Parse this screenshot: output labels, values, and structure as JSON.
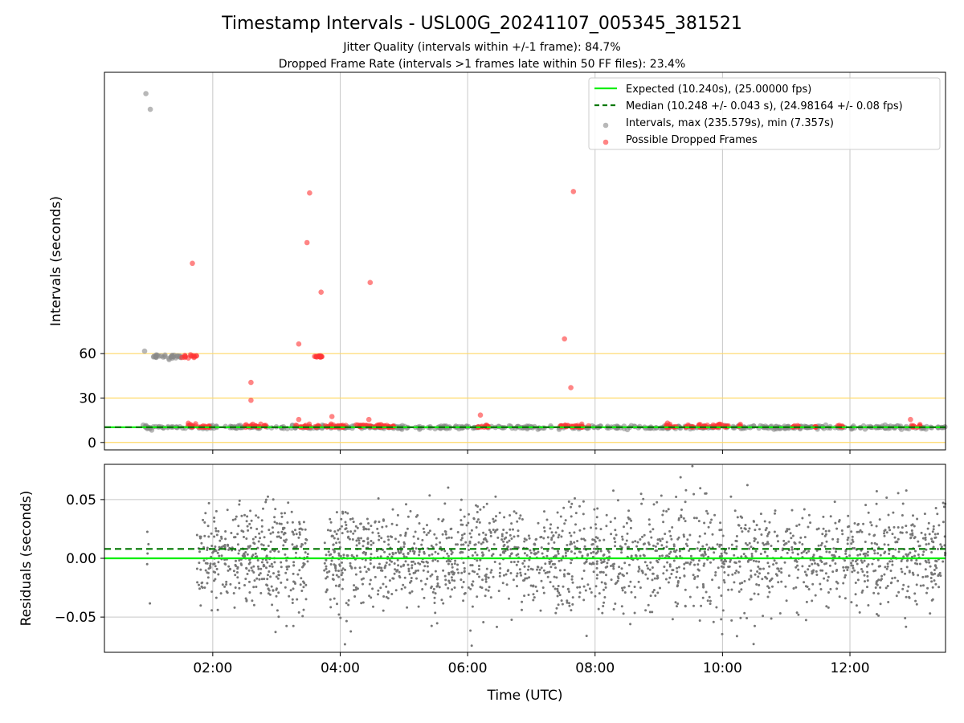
{
  "figure": {
    "title": "Timestamp Intervals - USL00G_20241107_005345_381521",
    "subtitle_line1": "Jitter Quality (intervals within +/-1 frame): 84.7%",
    "subtitle_line2": "Dropped Frame Rate (intervals >1 frames late within 50 FF files): 23.4%"
  },
  "chart_data": [
    {
      "type": "scatter",
      "panel": "intervals",
      "ylabel": "Intervals (seconds)",
      "xlabel": "",
      "x_range_hours": [
        0.3,
        13.5
      ],
      "ylim": [
        -5,
        250
      ],
      "y_ticks": [
        0,
        30,
        60
      ],
      "x_ticks": [
        "02:00",
        "04:00",
        "06:00",
        "08:00",
        "10:00",
        "12:00"
      ],
      "x_tick_hours": [
        2,
        4,
        6,
        8,
        10,
        12
      ],
      "grid": "x only",
      "reference_lines": [
        {
          "value": 0,
          "color": "#ffd966"
        },
        {
          "value": 30,
          "color": "#ffd966"
        },
        {
          "value": 60,
          "color": "#ffd966"
        }
      ],
      "legend_position": "upper right",
      "series": [
        {
          "name": "Expected (10.240s), (25.00000 fps)",
          "kind": "line",
          "color": "#00ee00",
          "style": "solid",
          "value": 10.24
        },
        {
          "name": "Median (10.248 +/- 0.043 s), (24.98164 +/- 0.08 fps)",
          "kind": "line",
          "color": "#007700",
          "style": "dashed",
          "value": 10.248
        },
        {
          "name": "Intervals, max (235.579s), min (7.357s)",
          "kind": "points",
          "color": "#888888",
          "outliers": [
            {
              "t": 0.95,
              "y": 235.6
            },
            {
              "t": 1.02,
              "y": 225.0
            },
            {
              "t": 0.93,
              "y": 61.7
            }
          ],
          "cluster": {
            "t_start": 0.9,
            "t_end": 13.5,
            "center": 10.24,
            "spread": 1.1
          },
          "plateau": {
            "t_start": 1.05,
            "t_end": 1.5,
            "center": 58.0,
            "spread": 1.2
          }
        },
        {
          "name": "Possible Dropped Frames",
          "kind": "points",
          "color": "#ff3333",
          "outliers": [
            {
              "t": 1.68,
              "y": 121.0
            },
            {
              "t": 2.6,
              "y": 40.5
            },
            {
              "t": 2.6,
              "y": 28.5
            },
            {
              "t": 3.35,
              "y": 66.5
            },
            {
              "t": 3.35,
              "y": 15.5
            },
            {
              "t": 3.48,
              "y": 135.0
            },
            {
              "t": 3.52,
              "y": 168.5
            },
            {
              "t": 3.7,
              "y": 101.5
            },
            {
              "t": 3.87,
              "y": 17.5
            },
            {
              "t": 4.47,
              "y": 108.0
            },
            {
              "t": 4.45,
              "y": 15.5
            },
            {
              "t": 6.2,
              "y": 18.5
            },
            {
              "t": 7.52,
              "y": 70.0
            },
            {
              "t": 7.62,
              "y": 37.0
            },
            {
              "t": 7.66,
              "y": 169.5
            },
            {
              "t": 12.95,
              "y": 15.5
            }
          ],
          "cluster_ranges": [
            [
              1.6,
              1.75
            ],
            [
              1.75,
              1.95
            ],
            [
              2.5,
              2.85
            ],
            [
              3.3,
              3.55
            ],
            [
              3.6,
              4.1
            ],
            [
              4.25,
              4.9
            ],
            [
              6.15,
              6.35
            ],
            [
              7.45,
              7.9
            ],
            [
              9.1,
              9.3
            ],
            [
              9.4,
              10.1
            ],
            [
              10.25,
              10.3
            ],
            [
              11.1,
              11.2
            ],
            [
              11.45,
              11.5
            ],
            [
              11.8,
              11.9
            ],
            [
              12.95,
              13.1
            ]
          ],
          "plateau": {
            "t_start": 1.5,
            "t_end": 1.75,
            "center": 58.0,
            "spread": 1.0
          },
          "plateau2": {
            "t_start": 3.58,
            "t_end": 3.72,
            "center": 58.0,
            "spread": 0.6
          }
        }
      ]
    },
    {
      "type": "scatter",
      "panel": "residuals",
      "ylabel": "Residuals (seconds)",
      "xlabel": "Time (UTC)",
      "x_range_hours": [
        0.3,
        13.5
      ],
      "ylim": [
        -0.08,
        0.08
      ],
      "y_ticks": [
        -0.05,
        0.0,
        0.05
      ],
      "y_tick_labels": [
        "−0.05",
        "0.00",
        "0.05"
      ],
      "x_ticks": [
        "02:00",
        "04:00",
        "06:00",
        "08:00",
        "10:00",
        "12:00"
      ],
      "x_tick_hours": [
        2,
        4,
        6,
        8,
        10,
        12
      ],
      "grid": "both",
      "series": [
        {
          "name": "",
          "kind": "line",
          "color": "#00ee00",
          "style": "solid",
          "value": 0.0
        },
        {
          "name": "",
          "kind": "line",
          "color": "#007700",
          "style": "dashed",
          "value": 0.008
        },
        {
          "name": "",
          "kind": "points",
          "color": "#777777",
          "segments": [
            {
              "t_start": 0.95,
              "t_end": 1.02,
              "count": 12
            },
            {
              "t_start": 1.75,
              "t_end": 3.5,
              "count": 900
            },
            {
              "t_start": 3.75,
              "t_end": 13.5,
              "count": 4300
            }
          ],
          "spread": 0.022
        }
      ]
    }
  ]
}
